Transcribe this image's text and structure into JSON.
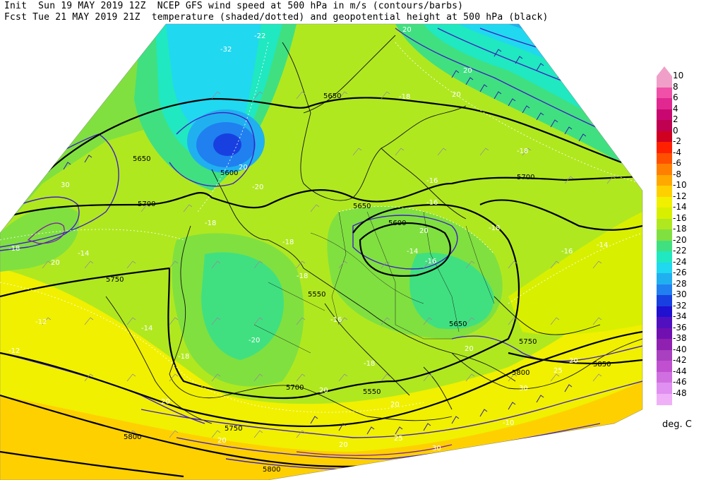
{
  "header": {
    "line1": "Init  Sun 19 MAY 2019 12Z  NCEP GFS wind speed at 500 hPa in m/s (contours/barbs)",
    "line2": "Fcst Tue 21 MAY 2019 21Z  temperature (shaded/dotted) and geopotential height at 500 hPa (black)"
  },
  "colorbar": {
    "units": "deg. C",
    "levels": [
      {
        "label": "10",
        "color": "#f0a0c8"
      },
      {
        "label": "8",
        "color": "#f050a8"
      },
      {
        "label": "6",
        "color": "#e02890"
      },
      {
        "label": "4",
        "color": "#c80870"
      },
      {
        "label": "2",
        "color": "#c00050"
      },
      {
        "label": "0",
        "color": "#d00020"
      },
      {
        "label": "-2",
        "color": "#ff2000"
      },
      {
        "label": "-4",
        "color": "#ff5000"
      },
      {
        "label": "-6",
        "color": "#ff8000"
      },
      {
        "label": "-8",
        "color": "#ffa800"
      },
      {
        "label": "-10",
        "color": "#ffd000"
      },
      {
        "label": "-12",
        "color": "#f0f000"
      },
      {
        "label": "-14",
        "color": "#d8f000"
      },
      {
        "label": "-16",
        "color": "#b0e820"
      },
      {
        "label": "-18",
        "color": "#80e040"
      },
      {
        "label": "-20",
        "color": "#40e080"
      },
      {
        "label": "-22",
        "color": "#20e8c0"
      },
      {
        "label": "-24",
        "color": "#20d8f0"
      },
      {
        "label": "-26",
        "color": "#20b0f0"
      },
      {
        "label": "-28",
        "color": "#2080f0"
      },
      {
        "label": "-30",
        "color": "#1840e0"
      },
      {
        "label": "-32",
        "color": "#2010d0"
      },
      {
        "label": "-34",
        "color": "#5010c0"
      },
      {
        "label": "-36",
        "color": "#7010b0"
      },
      {
        "label": "-38",
        "color": "#9020b0"
      },
      {
        "label": "-40",
        "color": "#a840c0"
      },
      {
        "label": "-42",
        "color": "#c050d0"
      },
      {
        "label": "-44",
        "color": "#d070e0"
      },
      {
        "label": "-46",
        "color": "#e090f0"
      },
      {
        "label": "-48",
        "color": "#f0b0f8"
      }
    ]
  },
  "map_labels": {
    "height": [
      "5650",
      "5700",
      "5750",
      "5650",
      "5700",
      "5750",
      "5800",
      "5600",
      "5650",
      "5650",
      "5700",
      "5750",
      "5800",
      "5850",
      "5600",
      "5550",
      "5550",
      "5800"
    ],
    "wind": [
      "20",
      "20",
      "30",
      "20",
      "20",
      "25",
      "30",
      "20",
      "25",
      "20",
      "20",
      "20",
      "20",
      "20",
      "30",
      "20",
      "20",
      "20"
    ],
    "temperature": [
      "-22",
      "-32",
      "-18",
      "-18",
      "-18",
      "-20",
      "-14",
      "-16",
      "-16",
      "-18",
      "-14",
      "-12",
      "-18",
      "-14",
      "-18",
      "-16",
      "-18",
      "-14",
      "-20",
      "-16",
      "-18",
      "-12",
      "-10",
      "-16",
      "-18"
    ]
  }
}
